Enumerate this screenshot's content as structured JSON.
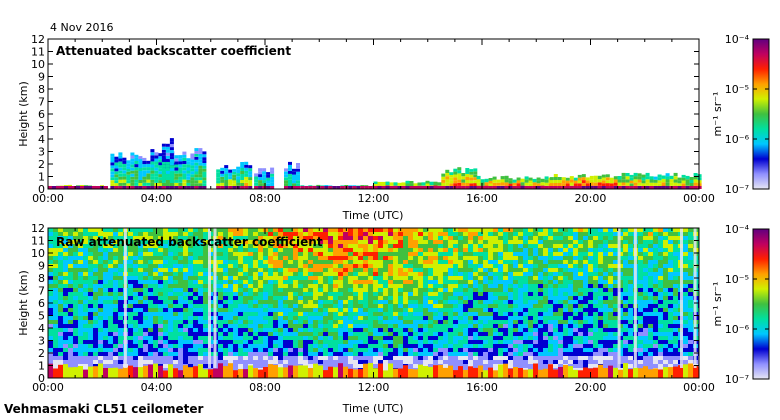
{
  "date_label": "4 Nov 2016",
  "footer_label": "Vehmasmaki CL51 ceilometer",
  "colorbar_unit": "m⁻¹ sr⁻¹",
  "colorbar_colors": [
    "#e6e6f2",
    "#9090ff",
    "#0000d0",
    "#00c8ff",
    "#00e0a0",
    "#40c040",
    "#d0f000",
    "#ffa000",
    "#ff2000",
    "#c00060",
    "#600080"
  ],
  "chart_data": [
    {
      "type": "heatmap",
      "title": "Attenuated backscatter coefficient",
      "xlabel": "Time (UTC)",
      "ylabel": "Height (km)",
      "x_ticks": [
        "00:00",
        "04:00",
        "08:00",
        "12:00",
        "16:00",
        "20:00",
        "00:00"
      ],
      "x_range_hours": [
        0,
        24
      ],
      "y_ticks": [
        "0",
        "1",
        "2",
        "3",
        "4",
        "5",
        "6",
        "7",
        "8",
        "9",
        "10",
        "11",
        "12"
      ],
      "ylim_km": [
        0,
        12
      ],
      "colorbar": {
        "ticks": [
          "10⁻⁴",
          "10⁻⁵",
          "10⁻⁶",
          "10⁻⁷"
        ],
        "range": [
          1e-07,
          0.0001
        ],
        "scale": "log"
      },
      "features": [
        {
          "start_h": 0.0,
          "end_h": 2.2,
          "top_km": 0.3,
          "level": 0.75
        },
        {
          "start_h": 2.3,
          "end_h": 5.7,
          "top_km": 3.0,
          "level": 0.55
        },
        {
          "start_h": 4.2,
          "end_h": 4.6,
          "top_km": 4.1,
          "level": 0.5
        },
        {
          "start_h": 6.2,
          "end_h": 7.5,
          "top_km": 2.0,
          "level": 0.6
        },
        {
          "start_h": 7.6,
          "end_h": 8.3,
          "top_km": 1.6,
          "level": 0.5
        },
        {
          "start_h": 8.7,
          "end_h": 9.2,
          "top_km": 2.0,
          "level": 0.5
        },
        {
          "start_h": 9.3,
          "end_h": 12.0,
          "top_km": 0.3,
          "level": 0.6
        },
        {
          "start_h": 12.0,
          "end_h": 14.5,
          "top_km": 0.6,
          "level": 0.7
        },
        {
          "start_h": 14.5,
          "end_h": 15.8,
          "top_km": 1.6,
          "level": 0.75
        },
        {
          "start_h": 15.8,
          "end_h": 18.5,
          "top_km": 1.0,
          "level": 0.75
        },
        {
          "start_h": 18.5,
          "end_h": 21.0,
          "top_km": 1.1,
          "level": 0.8
        },
        {
          "start_h": 21.0,
          "end_h": 24.0,
          "top_km": 1.2,
          "level": 0.7
        }
      ]
    },
    {
      "type": "heatmap",
      "title": "Raw attenuated backscatter coefficient",
      "xlabel": "Time (UTC)",
      "ylabel": "Height (km)",
      "x_ticks": [
        "00:00",
        "04:00",
        "08:00",
        "12:00",
        "16:00",
        "20:00",
        "00:00"
      ],
      "x_range_hours": [
        0,
        24
      ],
      "y_ticks": [
        "0",
        "1",
        "2",
        "3",
        "4",
        "5",
        "6",
        "7",
        "8",
        "9",
        "10",
        "11",
        "12"
      ],
      "ylim_km": [
        0,
        12
      ],
      "colorbar": {
        "ticks": [
          "10⁻⁴",
          "10⁻⁵",
          "10⁻⁶",
          "10⁻⁷"
        ],
        "range": [
          1e-07,
          0.0001
        ],
        "scale": "log"
      },
      "noise_columns_h": [
        2.8,
        5.9,
        6.1,
        21.0,
        21.6,
        23.3,
        23.8
      ]
    }
  ]
}
